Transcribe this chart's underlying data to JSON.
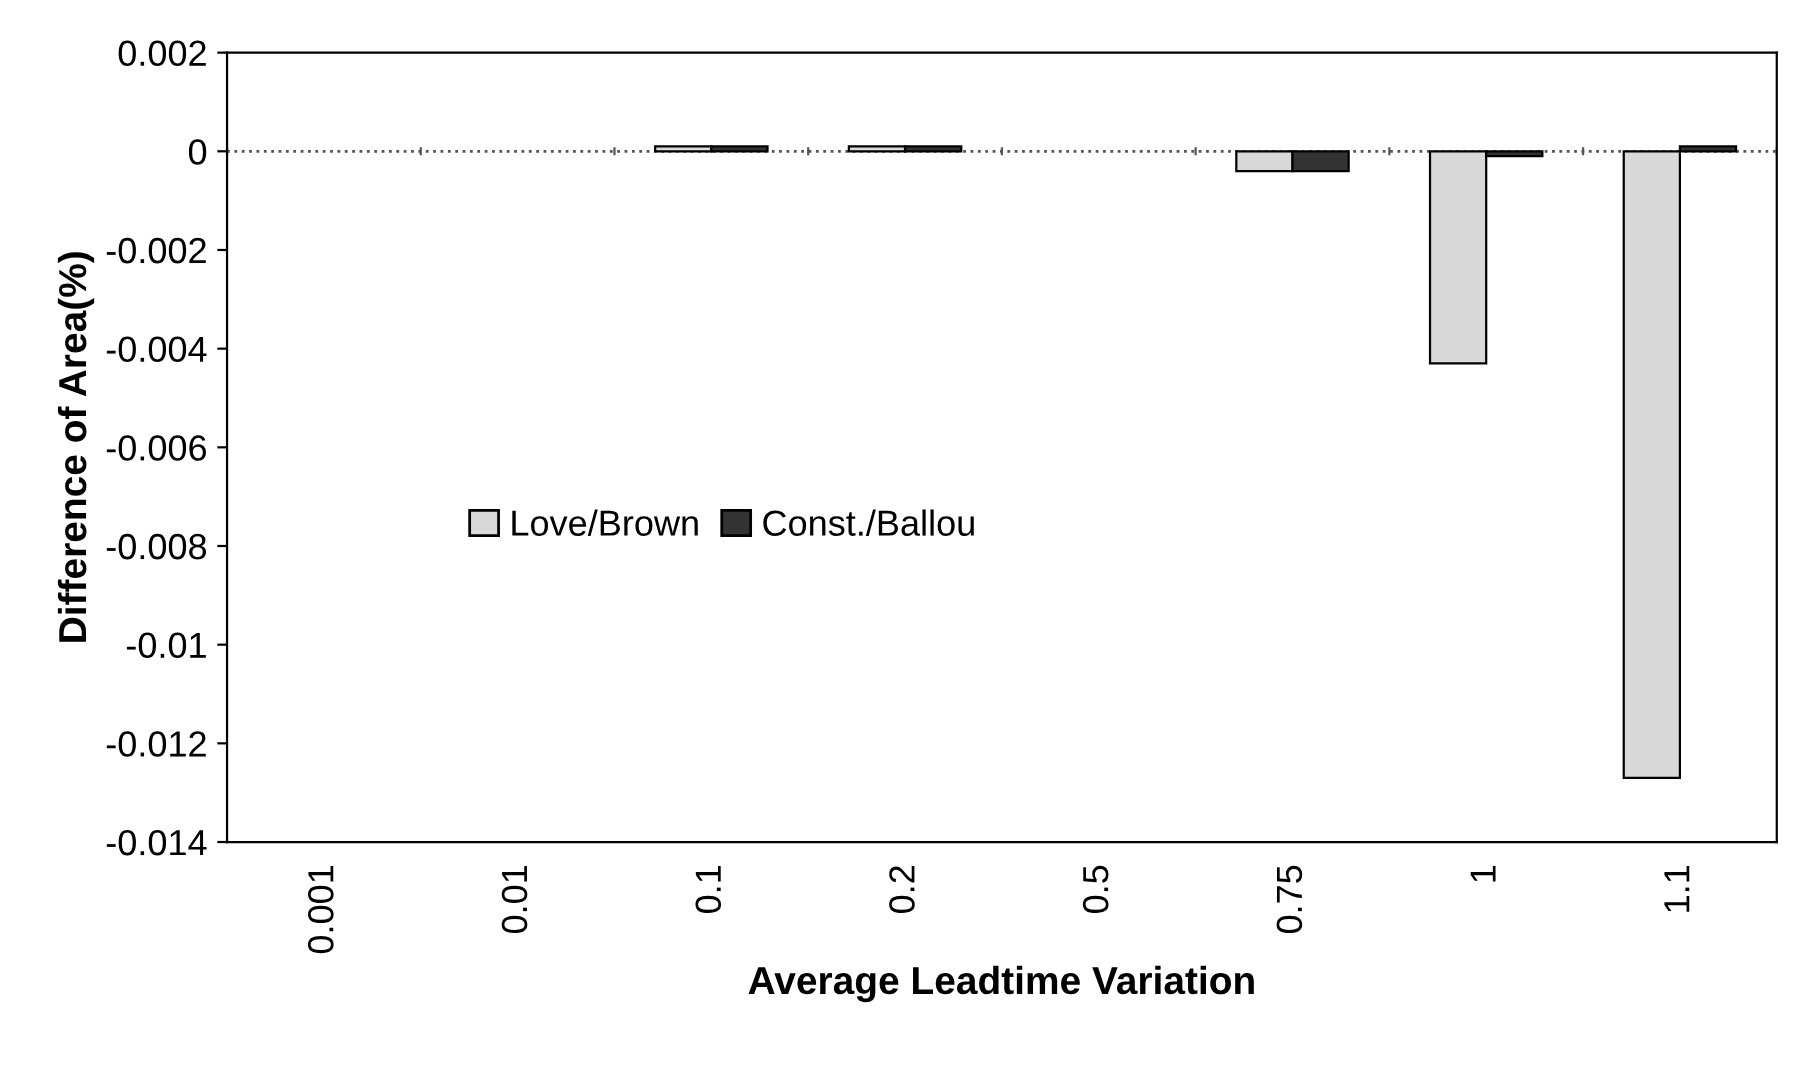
{
  "chart_data": {
    "type": "bar",
    "xlabel": "Average Leadtime Variation",
    "ylabel": "Difference of Area(%)",
    "categories": [
      "0.001",
      "0.01",
      "0.1",
      "0.2",
      "0.5",
      "0.75",
      "1",
      "1.1"
    ],
    "series": [
      {
        "name": "Love/Brown",
        "color": "#d9d9d9",
        "values": [
          0,
          0,
          0.0001,
          0.0001,
          0,
          -0.0004,
          -0.0043,
          -0.0127
        ]
      },
      {
        "name": "Const./Ballou",
        "color": "#333333",
        "values": [
          0,
          0,
          0.0001,
          0.0001,
          0,
          -0.0004,
          -0.0001,
          0.0001
        ]
      }
    ],
    "ylim": [
      -0.014,
      0.002
    ],
    "yticks": [
      0.002,
      0,
      -0.002,
      -0.004,
      -0.006,
      -0.008,
      -0.01,
      -0.012,
      -0.014
    ],
    "ref_lines": [
      {
        "axis": "y",
        "value": 0,
        "line_style": "dotted",
        "color": "#555555"
      }
    ],
    "grid": false,
    "legend": "center"
  }
}
